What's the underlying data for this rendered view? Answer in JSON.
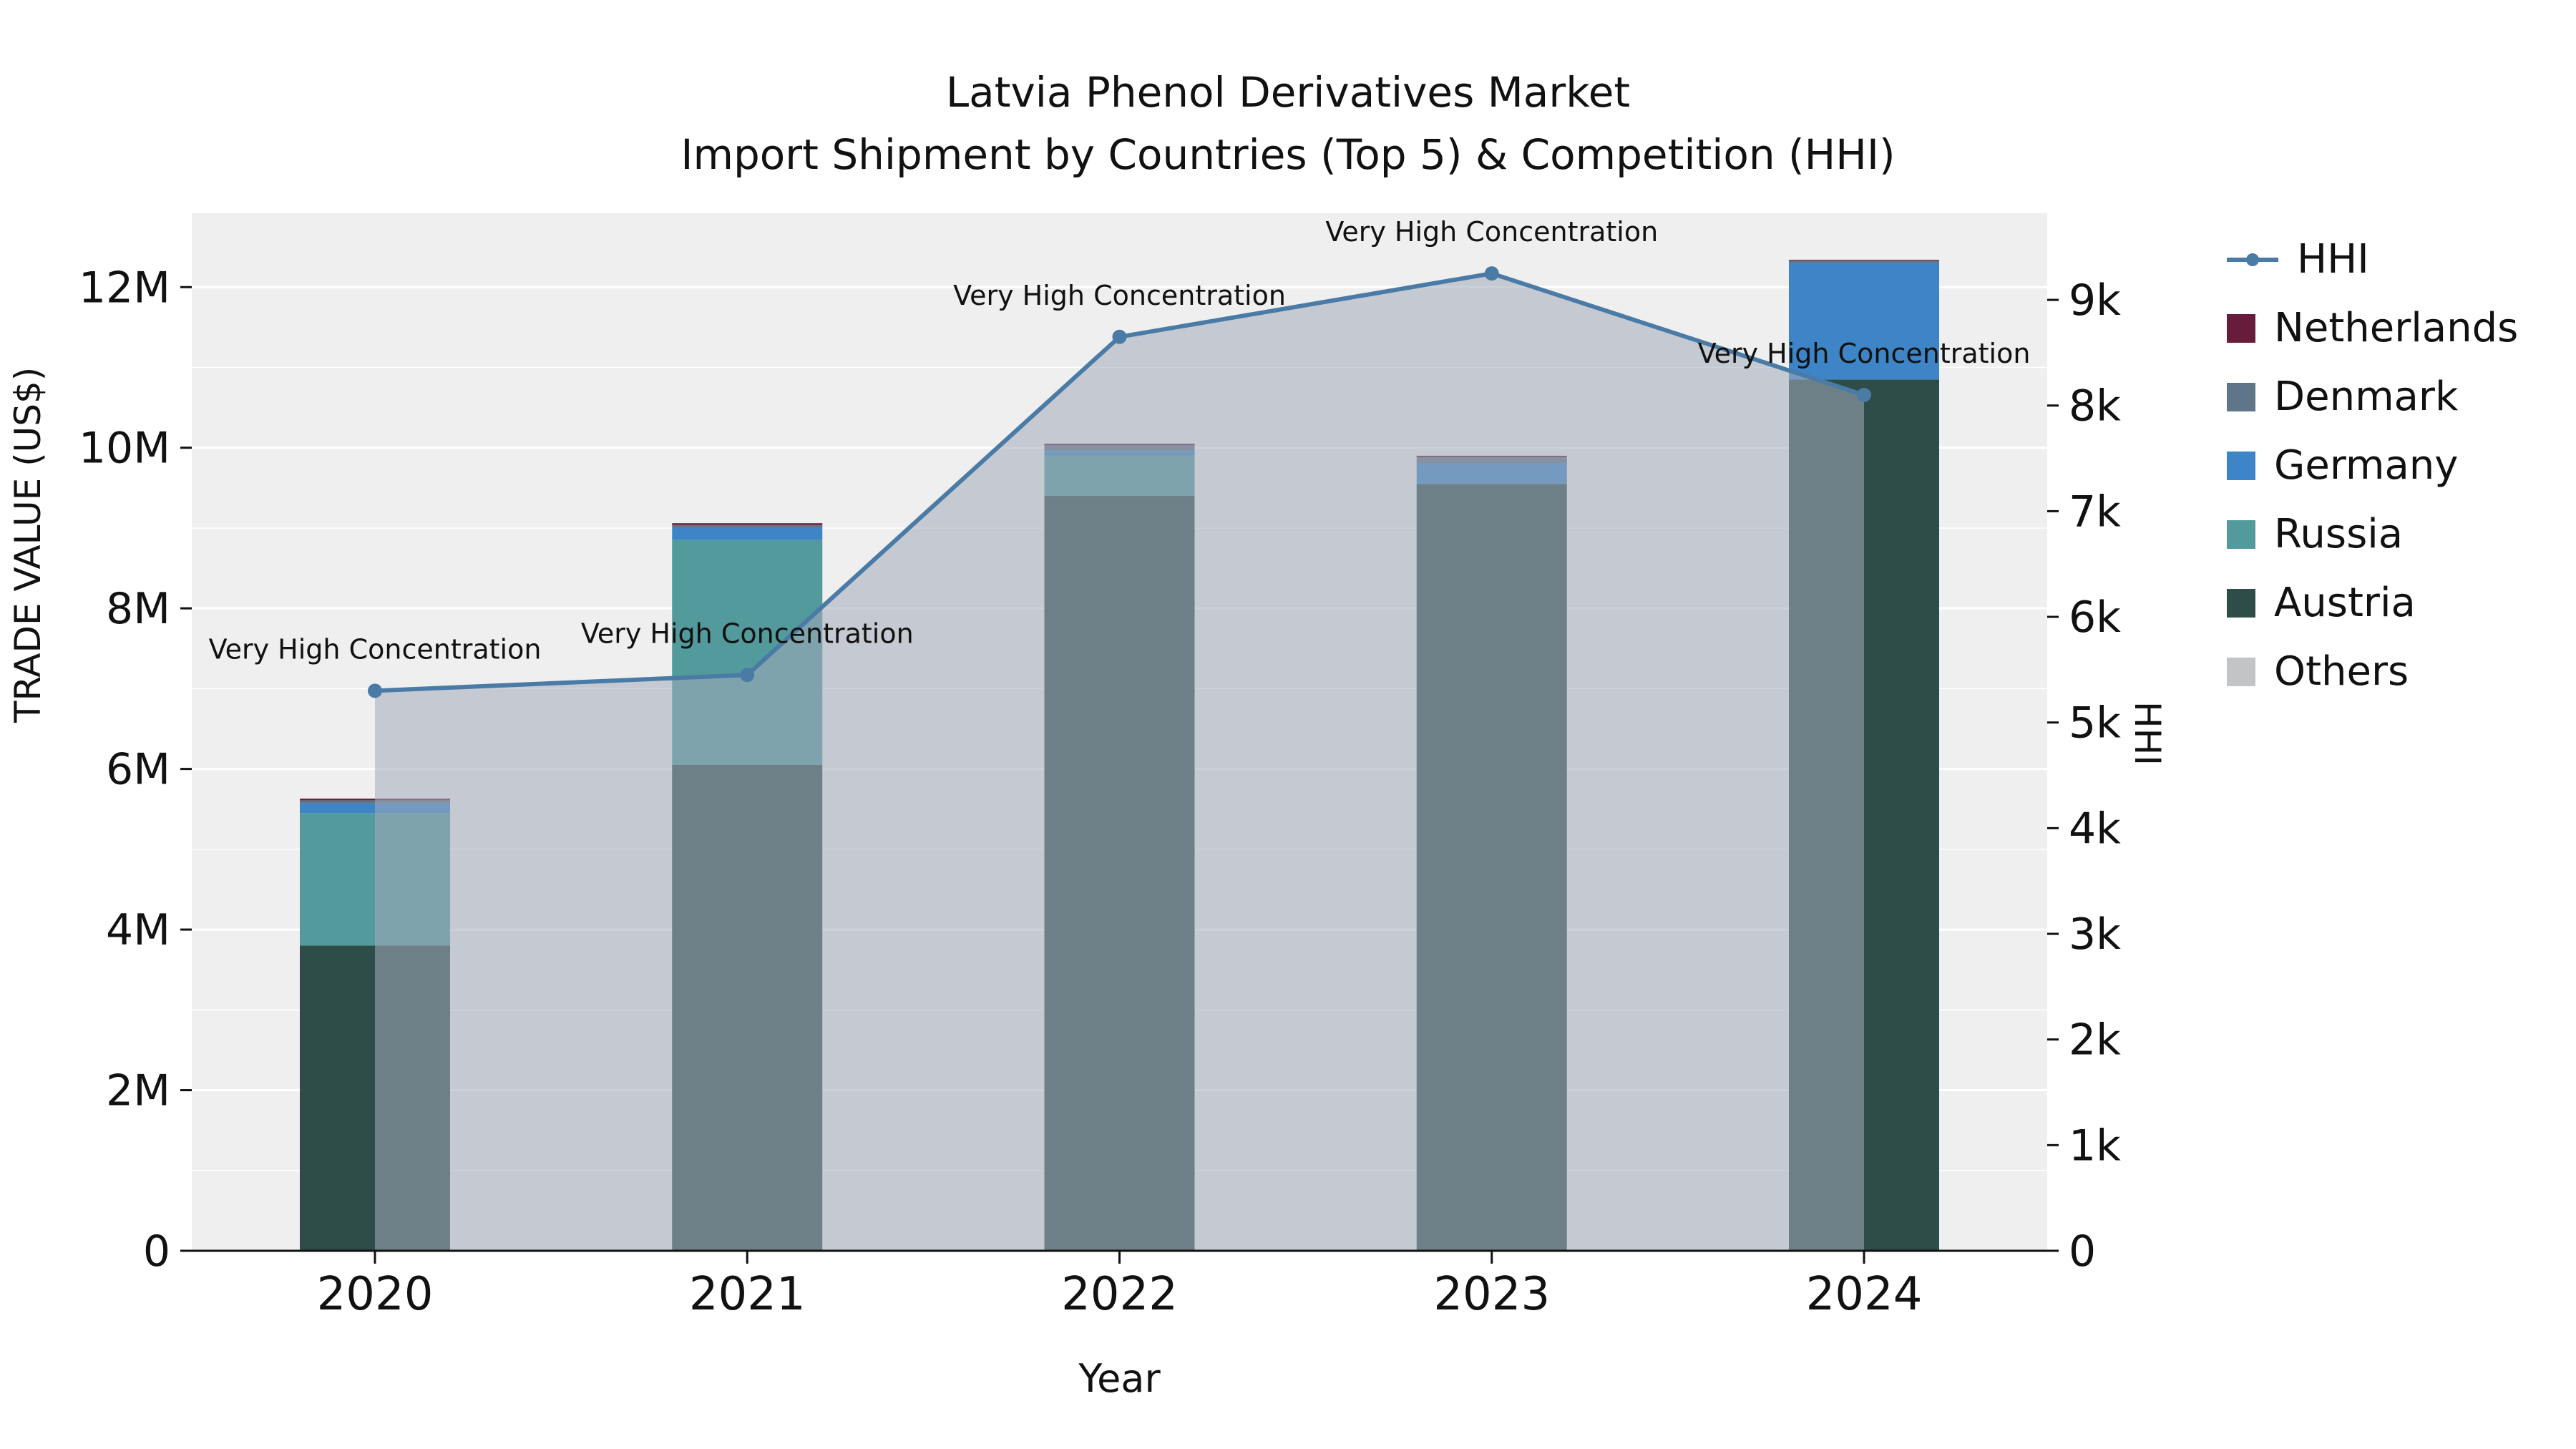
{
  "chart_data": {
    "type": "bar",
    "combo": "stacked-bar-with-line",
    "title": "Latvia Phenol Derivatives Market",
    "subtitle": "Import Shipment by Countries (Top 5) & Competition (HHI)",
    "xlabel": "Year",
    "ylabel_left": "TRADE VALUE (US$)",
    "ylabel_right": "HHI",
    "categories": [
      "2020",
      "2021",
      "2022",
      "2023",
      "2024"
    ],
    "bar_unit": "US$",
    "bar_series": [
      {
        "name": "Austria",
        "color": "#2e4d49",
        "values": [
          3800000,
          6050000,
          9400000,
          9550000,
          10850000
        ]
      },
      {
        "name": "Russia",
        "color": "#539a9c",
        "values": [
          1650000,
          2800000,
          500000,
          0,
          0
        ]
      },
      {
        "name": "Germany",
        "color": "#3d85c6",
        "values": [
          120000,
          150000,
          60000,
          250000,
          1450000
        ]
      },
      {
        "name": "Denmark",
        "color": "#5f7589",
        "values": [
          40000,
          40000,
          70000,
          80000,
          30000
        ]
      },
      {
        "name": "Netherlands",
        "color": "#671c3c",
        "values": [
          20000,
          20000,
          20000,
          20000,
          10000
        ]
      },
      {
        "name": "Others",
        "color": "#c3c4c6",
        "values": [
          0,
          0,
          0,
          0,
          0
        ]
      }
    ],
    "line_series": {
      "name": "HHI",
      "color": "#4a7ba6",
      "area_color": "rgba(163,172,186,0.55)",
      "values": [
        5300,
        5450,
        8650,
        9250,
        8100
      ]
    },
    "annotations": [
      "Very High Concentration",
      "Very High Concentration",
      "Very High Concentration",
      "Very High Concentration",
      "Very High Concentration"
    ],
    "y_left_ticks": {
      "values": [
        0,
        2000000,
        4000000,
        6000000,
        8000000,
        10000000,
        12000000
      ],
      "labels": [
        "0",
        "2M",
        "4M",
        "6M",
        "8M",
        "10M",
        "12M"
      ]
    },
    "y_right_ticks": {
      "values": [
        0,
        1000,
        2000,
        3000,
        4000,
        5000,
        6000,
        7000,
        8000,
        9000
      ],
      "labels": [
        "0",
        "1k",
        "2k",
        "3k",
        "4k",
        "5k",
        "6k",
        "7k",
        "8k",
        "9k"
      ]
    },
    "legend": [
      {
        "name": "HHI",
        "type": "line",
        "color": "#4a7ba6"
      },
      {
        "name": "Netherlands",
        "type": "square",
        "color": "#671c3c"
      },
      {
        "name": "Denmark",
        "type": "square",
        "color": "#5f7589"
      },
      {
        "name": "Germany",
        "type": "square",
        "color": "#3d85c6"
      },
      {
        "name": "Russia",
        "type": "square",
        "color": "#539a9c"
      },
      {
        "name": "Austria",
        "type": "square",
        "color": "#2e4d49"
      },
      {
        "name": "Others",
        "type": "square",
        "color": "#c3c4c6"
      }
    ],
    "plot_bg": "#efefef",
    "grid_color": "#ffffff",
    "axis_ranges": {
      "y_left_max": 12920000,
      "y_right_max": 9820
    }
  }
}
